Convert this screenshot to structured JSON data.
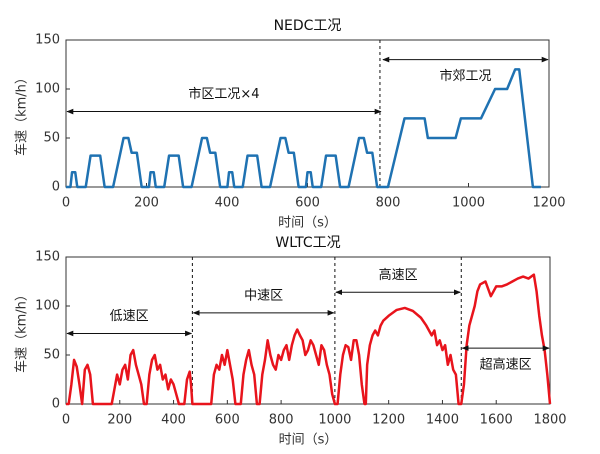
{
  "chart_data": [
    {
      "type": "line",
      "title": "NEDC工况",
      "x_label": "时间（s）",
      "y_label": "车速（km/h）",
      "color": "#1f72b2",
      "xlim": [
        0,
        1200
      ],
      "ylim": [
        0,
        150
      ],
      "xticks": [
        0,
        200,
        400,
        600,
        800,
        1000,
        1200
      ],
      "yticks": [
        0,
        50,
        100,
        150
      ],
      "x": [
        0,
        11,
        15,
        23,
        28,
        49,
        61,
        85,
        96,
        117,
        143,
        155,
        163,
        176,
        188,
        195,
        206,
        210,
        218,
        223,
        244,
        256,
        280,
        291,
        312,
        338,
        350,
        358,
        371,
        383,
        390,
        401,
        405,
        413,
        418,
        439,
        451,
        475,
        486,
        507,
        533,
        545,
        553,
        566,
        578,
        585,
        596,
        600,
        608,
        613,
        634,
        646,
        670,
        681,
        702,
        728,
        740,
        748,
        761,
        773,
        780,
        800,
        841,
        891,
        899,
        968,
        981,
        1031,
        1066,
        1096,
        1116,
        1126,
        1160,
        1180
      ],
      "values": [
        0,
        0,
        15,
        15,
        0,
        0,
        32,
        32,
        0,
        0,
        50,
        50,
        35,
        35,
        0,
        0,
        0,
        15,
        15,
        0,
        0,
        32,
        32,
        0,
        0,
        50,
        50,
        35,
        35,
        0,
        0,
        0,
        15,
        15,
        0,
        0,
        32,
        32,
        0,
        0,
        50,
        50,
        35,
        35,
        0,
        0,
        0,
        15,
        15,
        0,
        0,
        32,
        32,
        0,
        0,
        50,
        50,
        35,
        35,
        0,
        0,
        0,
        70,
        70,
        50,
        50,
        70,
        70,
        100,
        100,
        120,
        120,
        0,
        0
      ],
      "vlines": [
        780
      ],
      "annotations": [
        {
          "text": "市区工况×4",
          "x0": 0,
          "x1": 785,
          "y": 77,
          "text_position": "above"
        },
        {
          "text": "市郊工况",
          "x0": 785,
          "x1": 1200,
          "y": 130,
          "text_position": "below"
        }
      ]
    },
    {
      "type": "line",
      "title": "WLTC工况",
      "x_label": "时间（s）",
      "y_label": "车速（km/h）",
      "color": "#e8141c",
      "xlim": [
        0,
        1800
      ],
      "ylim": [
        0,
        150
      ],
      "xticks": [
        0,
        200,
        400,
        600,
        800,
        1000,
        1200,
        1400,
        1600,
        1800
      ],
      "yticks": [
        0,
        50,
        100,
        150
      ],
      "x": [
        0,
        10,
        20,
        30,
        40,
        50,
        60,
        70,
        80,
        90,
        100,
        170,
        180,
        190,
        200,
        210,
        220,
        230,
        240,
        250,
        260,
        270,
        280,
        290,
        300,
        310,
        320,
        330,
        340,
        350,
        360,
        370,
        380,
        390,
        400,
        410,
        420,
        440,
        450,
        460,
        465,
        470,
        480,
        540,
        550,
        560,
        570,
        580,
        590,
        600,
        610,
        620,
        630,
        650,
        660,
        670,
        680,
        690,
        700,
        710,
        720,
        730,
        740,
        750,
        760,
        770,
        780,
        790,
        800,
        810,
        820,
        830,
        840,
        850,
        860,
        870,
        880,
        890,
        900,
        910,
        920,
        930,
        940,
        950,
        960,
        970,
        980,
        990,
        1000,
        1010,
        1020,
        1030,
        1040,
        1050,
        1060,
        1070,
        1080,
        1090,
        1100,
        1110,
        1115,
        1120,
        1130,
        1140,
        1150,
        1160,
        1170,
        1180,
        1200,
        1230,
        1260,
        1290,
        1320,
        1340,
        1360,
        1370,
        1380,
        1390,
        1400,
        1410,
        1420,
        1430,
        1440,
        1450,
        1460,
        1470,
        1480,
        1490,
        1500,
        1520,
        1530,
        1540,
        1560,
        1580,
        1590,
        1600,
        1620,
        1640,
        1660,
        1680,
        1700,
        1720,
        1740,
        1750,
        1760,
        1770,
        1780,
        1790,
        1800
      ],
      "values": [
        0,
        0,
        20,
        45,
        38,
        20,
        0,
        35,
        40,
        30,
        0,
        0,
        15,
        30,
        20,
        35,
        40,
        25,
        50,
        55,
        40,
        30,
        20,
        0,
        0,
        30,
        45,
        50,
        35,
        40,
        25,
        30,
        15,
        25,
        20,
        10,
        0,
        0,
        25,
        33,
        20,
        0,
        0,
        0,
        30,
        40,
        35,
        50,
        40,
        55,
        40,
        25,
        0,
        0,
        30,
        45,
        55,
        40,
        30,
        0,
        0,
        30,
        45,
        65,
        50,
        40,
        35,
        50,
        45,
        55,
        60,
        45,
        60,
        70,
        76,
        70,
        65,
        50,
        55,
        65,
        60,
        50,
        40,
        60,
        55,
        40,
        30,
        10,
        0,
        0,
        30,
        50,
        60,
        58,
        45,
        65,
        65,
        50,
        20,
        0,
        0,
        40,
        60,
        70,
        75,
        70,
        80,
        85,
        90,
        96,
        98,
        95,
        88,
        80,
        70,
        75,
        60,
        65,
        55,
        60,
        40,
        50,
        35,
        30,
        0,
        0,
        20,
        60,
        80,
        100,
        115,
        122,
        125,
        110,
        115,
        120,
        120,
        122,
        125,
        128,
        130,
        128,
        132,
        115,
        90,
        70,
        55,
        30,
        0
      ],
      "vlines": [
        470,
        1000,
        1470
      ],
      "annotations": [
        {
          "text": "低速区",
          "x0": 0,
          "x1": 470,
          "y": 72,
          "text_position": "above"
        },
        {
          "text": "中速区",
          "x0": 470,
          "x1": 1000,
          "y": 93,
          "text_position": "above"
        },
        {
          "text": "高速区",
          "x0": 1000,
          "x1": 1470,
          "y": 114,
          "text_position": "above"
        },
        {
          "text": "超高速区",
          "x0": 1470,
          "x1": 1800,
          "y": 57,
          "text_position": "below"
        }
      ]
    }
  ]
}
